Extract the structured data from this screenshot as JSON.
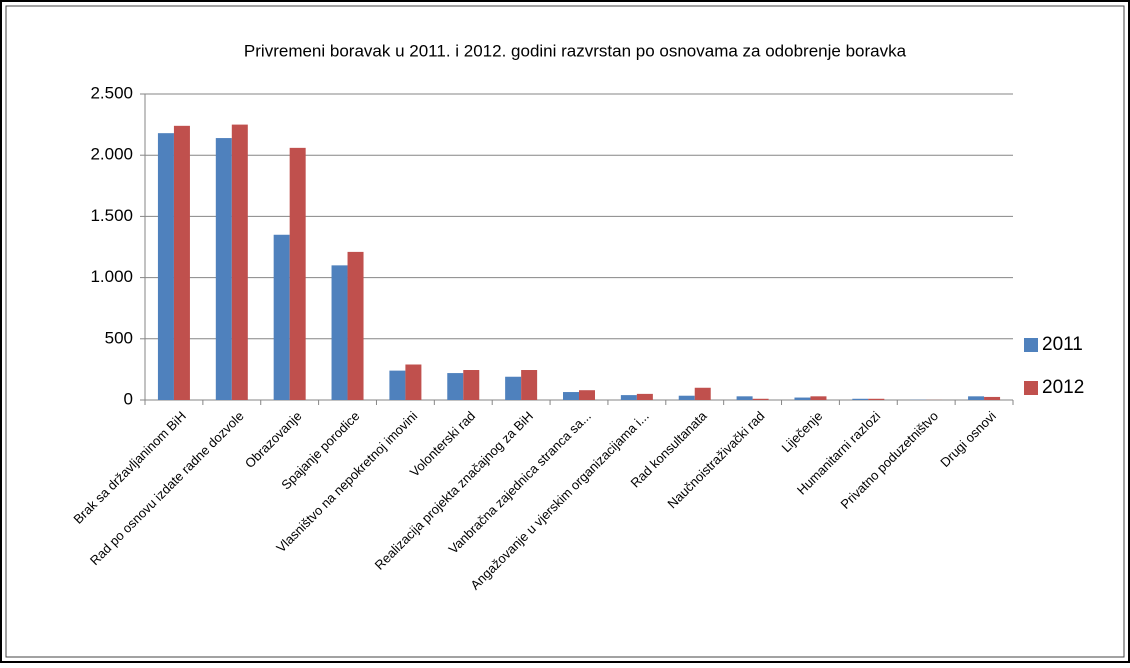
{
  "chart_data": {
    "type": "bar",
    "title": "Privremeni boravak u 2011. i 2012. godini razvrstan po osnovama za odobrenje boravka",
    "categories": [
      "Brak sa državljaninom BiH",
      "Rad po osnovu izdate radne dozvole",
      "Obrazovanje",
      "Spajanje porodice",
      "Vlasništvo na nepokretnoj imovini",
      "Volonterski rad",
      "Realizacija projekta značajnog za BiH",
      "Vanbračna zajednica stranca sa...",
      "Angažovanje u vjerskim organizacijama i...",
      "Rad konsultanata",
      "Naučnoistraživački rad",
      "Liječenje",
      "Humanitarni razlozi",
      "Privatno poduzetništvo",
      "Drugi osnovi"
    ],
    "series": [
      {
        "name": "2011",
        "color": "#4f81bd",
        "values": [
          2180,
          2140,
          1350,
          1100,
          240,
          220,
          190,
          65,
          40,
          35,
          30,
          20,
          10,
          2,
          30
        ]
      },
      {
        "name": "2012",
        "color": "#c0504d",
        "values": [
          2240,
          2250,
          2060,
          1210,
          290,
          245,
          245,
          80,
          50,
          100,
          10,
          30,
          10,
          1,
          25
        ]
      }
    ],
    "ylim": [
      0,
      2500
    ],
    "yticks": [
      0,
      {
        "value": 500,
        "label": "500"
      },
      {
        "value": 1000,
        "label": "1.000"
      },
      {
        "value": 1500,
        "label": "1.500"
      },
      {
        "value": 2000,
        "label": "2.000"
      },
      {
        "value": 2500,
        "label": "2.500"
      }
    ],
    "grid": true,
    "legend": "right"
  }
}
